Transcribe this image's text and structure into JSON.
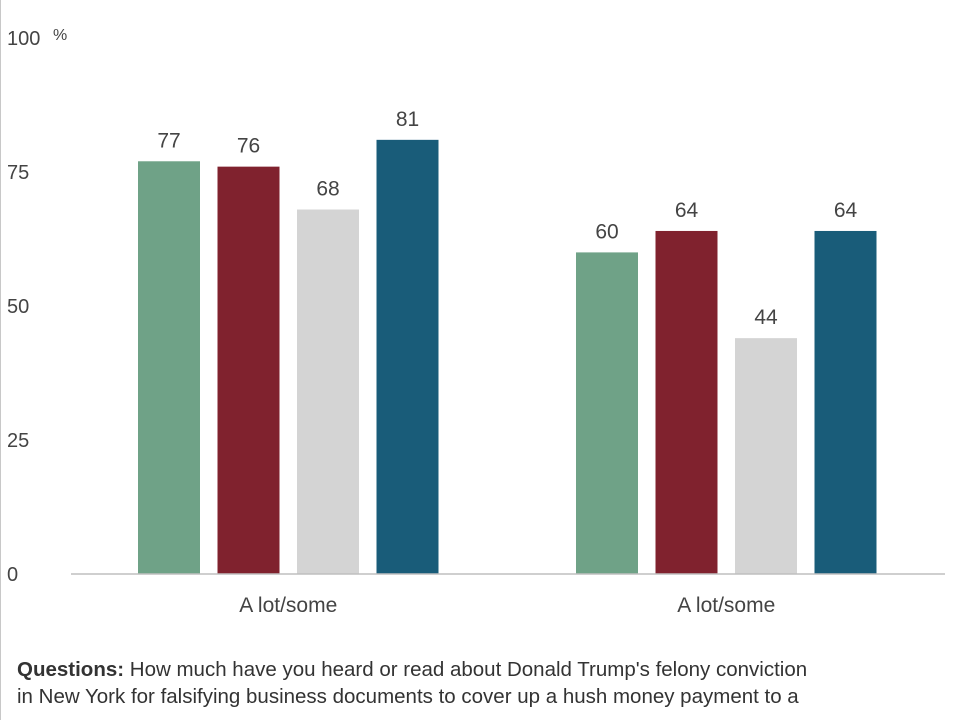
{
  "chart_data": {
    "type": "bar",
    "categories": [
      "A lot/some",
      "A lot/some"
    ],
    "series": [
      {
        "values": [
          77,
          60
        ],
        "color": "#6fa287"
      },
      {
        "values": [
          76,
          64
        ],
        "color": "#80222e"
      },
      {
        "values": [
          68,
          44
        ],
        "color": "#d4d4d4"
      },
      {
        "values": [
          81,
          64
        ],
        "color": "#195c79"
      }
    ],
    "y_ticks": [
      "0",
      "25",
      "50",
      "75",
      "100"
    ],
    "y_unit": "%",
    "ylim": [
      0,
      100
    ],
    "grid": false,
    "xlabel": "",
    "ylabel": ""
  },
  "note": {
    "label": "Questions:",
    "line1": " How much have you heard or read about Donald Trump's felony conviction",
    "line2": "in New York for falsifying business documents to cover up a hush money payment to a"
  }
}
